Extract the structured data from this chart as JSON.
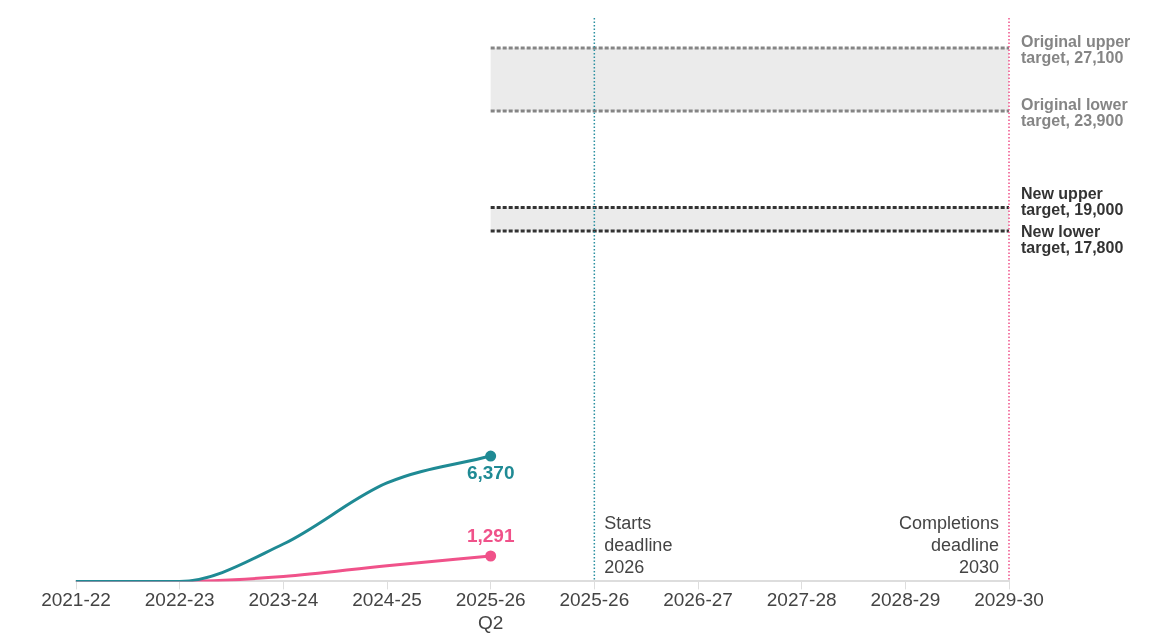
{
  "chart_data": {
    "type": "line",
    "categories": [
      "2021-22",
      "2022-23",
      "2023-24",
      "2024-25",
      "2025-26 Q2",
      "2025-26",
      "2026-27",
      "2027-28",
      "2028-29",
      "2029-30"
    ],
    "series": [
      {
        "color": "#1f8a94",
        "values": [
          0,
          0,
          1900,
          5000,
          6370,
          null,
          null,
          null,
          null,
          null
        ],
        "value_labels": [
          null,
          null,
          null,
          null,
          "6,370",
          null,
          null,
          null,
          null,
          null
        ]
      },
      {
        "color": "#f0528a",
        "values": [
          0,
          0,
          250,
          800,
          1291,
          null,
          null,
          null,
          null,
          null
        ],
        "value_labels": [
          null,
          null,
          null,
          null,
          "1,291",
          null,
          null,
          null,
          null,
          null
        ]
      }
    ],
    "tick_labels": "x",
    "grid": false,
    "legend": false,
    "bands": [
      {
        "axis": "y",
        "from": 23900,
        "to": 27100,
        "color": "#ebebeb"
      },
      {
        "axis": "y",
        "from": 17800,
        "to": 19000,
        "color": "#ebebeb"
      }
    ],
    "ref_lines": [
      {
        "axis": "y",
        "value": 27100,
        "label": "Original upper target, 27,100",
        "color": "#858585",
        "line_style": "dashed"
      },
      {
        "axis": "y",
        "value": 23900,
        "label": "Original lower target, 23,900",
        "color": "#858585",
        "line_style": "dashed"
      },
      {
        "axis": "y",
        "value": 19000,
        "label": "New upper target, 19,000",
        "color": "#333333",
        "line_style": "dashed"
      },
      {
        "axis": "y",
        "value": 17800,
        "label": "New lower target, 17,800",
        "color": "#333333",
        "line_style": "dashed"
      },
      {
        "axis": "x",
        "value": "2025-26",
        "label": "Starts deadline 2026",
        "color": "#2a8fa0",
        "line_style": "dotted"
      },
      {
        "axis": "x",
        "value": "2029-30",
        "label": "Completions deadline 2030",
        "color": "#f0528a",
        "line_style": "dotted"
      }
    ]
  }
}
